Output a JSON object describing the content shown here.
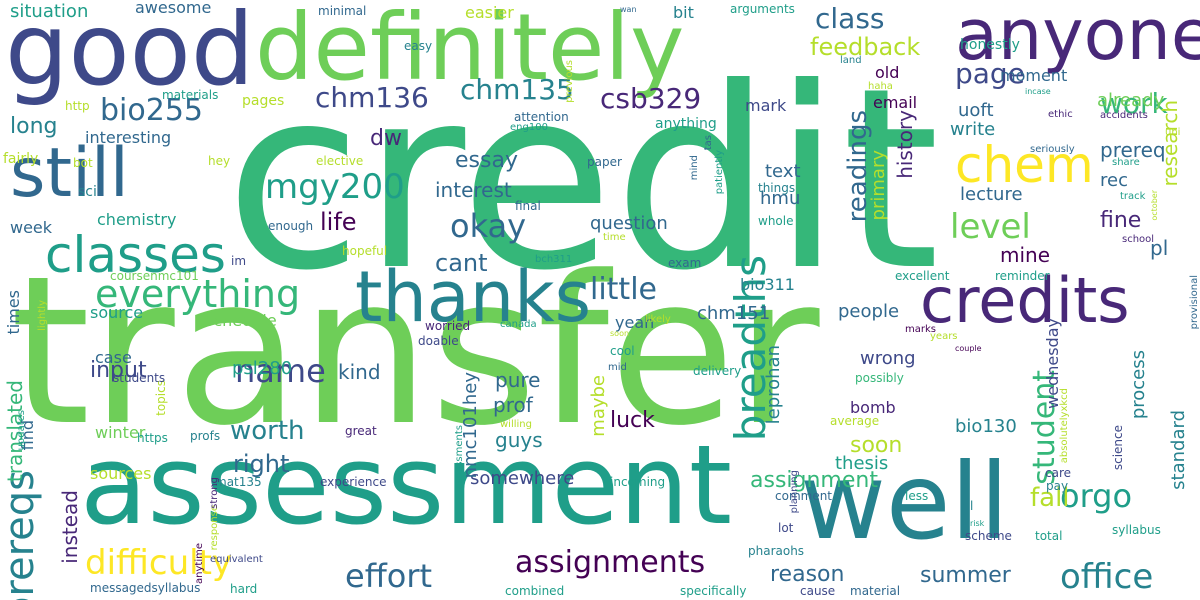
{
  "palette": [
    "#440154",
    "#482878",
    "#3e4989",
    "#31688e",
    "#26828e",
    "#1f9e89",
    "#35b779",
    "#6ece58",
    "#b5de2b",
    "#fde725"
  ],
  "words": [
    {
      "text": "credit",
      "color": "#35b779"
    },
    {
      "text": "transfer",
      "color": "#6ece58"
    },
    {
      "text": "assessment",
      "color": "#1f9e89"
    },
    {
      "text": "definitely",
      "color": "#6ece58"
    },
    {
      "text": "good",
      "color": "#3e4989"
    },
    {
      "text": "well",
      "color": "#26828e"
    },
    {
      "text": "anyone",
      "color": "#482878"
    },
    {
      "text": "thanks",
      "color": "#26828e"
    },
    {
      "text": "credits",
      "color": "#482878"
    },
    {
      "text": "still",
      "color": "#31688e"
    },
    {
      "text": "classes",
      "color": "#1f9e89"
    },
    {
      "text": "everything",
      "color": "#35b779"
    },
    {
      "text": "chem",
      "color": "#fde725"
    },
    {
      "text": "breadths",
      "color": "#1f9e89"
    },
    {
      "text": "mgy200",
      "color": "#1f9e89"
    },
    {
      "text": "office",
      "color": "#26828e"
    },
    {
      "text": "prereqs",
      "color": "#26828e"
    },
    {
      "text": "difficulty",
      "color": "#fde725"
    },
    {
      "text": "effort",
      "color": "#31688e"
    },
    {
      "text": "assignments",
      "color": "#440154"
    },
    {
      "text": "bio255",
      "color": "#31688e"
    },
    {
      "text": "chm136",
      "color": "#3e4989"
    },
    {
      "text": "chm135",
      "color": "#26828e"
    },
    {
      "text": "csb329",
      "color": "#482878"
    },
    {
      "text": "class",
      "color": "#31688e"
    },
    {
      "text": "page",
      "color": "#3e4989"
    },
    {
      "text": "work",
      "color": "#35b779"
    },
    {
      "text": "level",
      "color": "#6ece58"
    },
    {
      "text": "okay",
      "color": "#31688e"
    },
    {
      "text": "little",
      "color": "#31688e"
    },
    {
      "text": "orgo",
      "color": "#1f9e89"
    },
    {
      "text": "name",
      "color": "#3e4989"
    },
    {
      "text": "student",
      "color": "#35b779"
    },
    {
      "text": "feedback",
      "color": "#b5de2b"
    },
    {
      "text": "fall",
      "color": "#b5de2b"
    },
    {
      "text": "summer",
      "color": "#31688e"
    },
    {
      "text": "reason",
      "color": "#31688e"
    },
    {
      "text": "worth",
      "color": "#26828e"
    },
    {
      "text": "right",
      "color": "#31688e"
    },
    {
      "text": "readings",
      "color": "#31688e"
    },
    {
      "text": "cant",
      "color": "#31688e"
    },
    {
      "text": "assignment",
      "color": "#35b779"
    },
    {
      "text": "life",
      "color": "#440154"
    },
    {
      "text": "essay",
      "color": "#31688e"
    },
    {
      "text": "interest",
      "color": "#31688e"
    },
    {
      "text": "fine",
      "color": "#482878"
    },
    {
      "text": "long",
      "color": "#26828e"
    },
    {
      "text": "dw",
      "color": "#482878"
    },
    {
      "text": "research",
      "color": "#b5de2b"
    },
    {
      "text": "prereq",
      "color": "#31688e"
    },
    {
      "text": "history",
      "color": "#482878"
    },
    {
      "text": "primary",
      "color": "#b5de2b"
    },
    {
      "text": "translated",
      "color": "#35b779"
    },
    {
      "text": "instead",
      "color": "#482878"
    },
    {
      "text": "input",
      "color": "#3e4989"
    },
    {
      "text": "kind",
      "color": "#31688e"
    },
    {
      "text": "luck",
      "color": "#440154"
    },
    {
      "text": "pure",
      "color": "#31688e"
    },
    {
      "text": "prof",
      "color": "#31688e"
    },
    {
      "text": "maybe",
      "color": "#b5de2b"
    },
    {
      "text": "guys",
      "color": "#26828e"
    },
    {
      "text": "somewhere",
      "color": "#3e4989"
    },
    {
      "text": "nmc101hey",
      "color": "#31688e"
    },
    {
      "text": "question",
      "color": "#31688e"
    },
    {
      "text": "wrong",
      "color": "#3e4989"
    },
    {
      "text": "people",
      "color": "#31688e"
    },
    {
      "text": "soon",
      "color": "#b5de2b"
    },
    {
      "text": "thesis",
      "color": "#1f9e89"
    },
    {
      "text": "bomb",
      "color": "#482878"
    },
    {
      "text": "chm151",
      "color": "#31688e"
    },
    {
      "text": "bio311",
      "color": "#26828e"
    },
    {
      "text": "bio130",
      "color": "#26828e"
    },
    {
      "text": "psl280",
      "color": "#1f9e89"
    },
    {
      "text": "leprohan",
      "color": "#26828e"
    },
    {
      "text": "wednesday",
      "color": "#3e4989"
    },
    {
      "text": "process",
      "color": "#26828e"
    },
    {
      "text": "standard",
      "color": "#26828e"
    },
    {
      "text": "pl",
      "color": "#31688e"
    },
    {
      "text": "hmu",
      "color": "#31688e"
    },
    {
      "text": "text",
      "color": "#31688e"
    },
    {
      "text": "lecture",
      "color": "#31688e"
    },
    {
      "text": "rec",
      "color": "#31688e"
    },
    {
      "text": "mine",
      "color": "#440154"
    },
    {
      "text": "uoft",
      "color": "#31688e"
    },
    {
      "text": "write",
      "color": "#26828e"
    },
    {
      "text": "already",
      "color": "#6ece58"
    },
    {
      "text": "moment",
      "color": "#31688e"
    },
    {
      "text": "honestly",
      "color": "#1f9e89"
    },
    {
      "text": "email",
      "color": "#440154"
    },
    {
      "text": "old",
      "color": "#440154"
    },
    {
      "text": "mark",
      "color": "#3e4989"
    },
    {
      "text": "interesting",
      "color": "#31688e"
    },
    {
      "text": "chemistry",
      "color": "#1f9e89"
    },
    {
      "text": "week",
      "color": "#31688e"
    },
    {
      "text": "times",
      "color": "#31688e"
    },
    {
      "text": "source",
      "color": "#1f9e89"
    },
    {
      "text": "schedule",
      "color": "#6ece58"
    },
    {
      "text": "case",
      "color": "#31688e"
    },
    {
      "text": "find",
      "color": "#31688e"
    },
    {
      "text": "winter",
      "color": "#6ece58"
    },
    {
      "text": "sources",
      "color": "#b5de2b"
    },
    {
      "text": "yeah",
      "color": "#31688e"
    },
    {
      "text": "awesome",
      "color": "#31688e"
    },
    {
      "text": "situation",
      "color": "#1f9e89"
    },
    {
      "text": "easier",
      "color": "#b5de2b"
    },
    {
      "text": "bit",
      "color": "#26828e"
    },
    {
      "text": "minimal",
      "color": "#31688e"
    },
    {
      "text": "arguments",
      "color": "#1f9e89"
    },
    {
      "text": "previous",
      "color": "#b5de2b"
    },
    {
      "text": "wan",
      "color": "#31688e"
    },
    {
      "text": "easy",
      "color": "#26828e"
    },
    {
      "text": "land",
      "color": "#26828e"
    },
    {
      "text": "haha",
      "color": "#b5de2b"
    },
    {
      "text": "incase",
      "color": "#1f9e89"
    },
    {
      "text": "ethic",
      "color": "#482878"
    },
    {
      "text": "accidents",
      "color": "#482878"
    },
    {
      "text": "uni",
      "color": "#b5de2b"
    },
    {
      "text": "seriously",
      "color": "#31688e"
    },
    {
      "text": "share",
      "color": "#1f9e89"
    },
    {
      "text": "track",
      "color": "#1f9e89"
    },
    {
      "text": "october",
      "color": "#b5de2b"
    },
    {
      "text": "school",
      "color": "#482878"
    },
    {
      "text": "provisional",
      "color": "#31688e"
    },
    {
      "text": "couple",
      "color": "#440154"
    },
    {
      "text": "science",
      "color": "#3e4989"
    },
    {
      "text": "care",
      "color": "#3e4989"
    },
    {
      "text": "pay",
      "color": "#26828e"
    },
    {
      "text": "syllabus",
      "color": "#1f9e89"
    },
    {
      "text": "l",
      "color": "#26828e"
    },
    {
      "text": "risk",
      "color": "#1f9e89"
    },
    {
      "text": "total",
      "color": "#1f9e89"
    },
    {
      "text": "scheme",
      "color": "#3e4989"
    },
    {
      "text": "less",
      "color": "#1f9e89"
    },
    {
      "text": "absolutelyxkcd",
      "color": "#b5de2b"
    },
    {
      "text": "marks",
      "color": "#440154"
    },
    {
      "text": "years",
      "color": "#b5de2b"
    },
    {
      "text": "possibly",
      "color": "#35b779"
    },
    {
      "text": "average",
      "color": "#b5de2b"
    },
    {
      "text": "excellent",
      "color": "#1f9e89"
    },
    {
      "text": "reminder",
      "color": "#1f9e89"
    },
    {
      "text": "comment",
      "color": "#31688e"
    },
    {
      "text": "lot",
      "color": "#3e4989"
    },
    {
      "text": "pharaohs",
      "color": "#26828e"
    },
    {
      "text": "material",
      "color": "#31688e"
    },
    {
      "text": "cause",
      "color": "#3e4989"
    },
    {
      "text": "specifically",
      "color": "#1f9e89"
    },
    {
      "text": "combined",
      "color": "#1f9e89"
    },
    {
      "text": "hard",
      "color": "#1f9e89"
    },
    {
      "text": "messagedsyllabus",
      "color": "#31688e"
    },
    {
      "text": "equivalent",
      "color": "#3e4989"
    },
    {
      "text": "anytime",
      "color": "#440154"
    },
    {
      "text": "response",
      "color": "#b5de2b"
    },
    {
      "text": "mat135",
      "color": "#26828e"
    },
    {
      "text": "experience",
      "color": "#3e4989"
    },
    {
      "text": "incoming",
      "color": "#1f9e89"
    },
    {
      "text": "planning",
      "color": "#3e4989"
    },
    {
      "text": "delivery",
      "color": "#1f9e89"
    },
    {
      "text": "mid",
      "color": "#31688e"
    },
    {
      "text": "cool",
      "color": "#1f9e89"
    },
    {
      "text": "soon",
      "color": "#b5de2b"
    },
    {
      "text": "likely",
      "color": "#b5de2b"
    },
    {
      "text": "canada",
      "color": "#1f9e89"
    },
    {
      "text": "doable",
      "color": "#3e4989"
    },
    {
      "text": "worried",
      "color": "#482878"
    },
    {
      "text": "exam",
      "color": "#31688e"
    },
    {
      "text": "bch311",
      "color": "#1f9e89"
    },
    {
      "text": "willing",
      "color": "#b5de2b"
    },
    {
      "text": "assessments",
      "color": "#1f9e89"
    },
    {
      "text": "great",
      "color": "#482878"
    },
    {
      "text": "profs",
      "color": "#26828e"
    },
    {
      "text": "https",
      "color": "#1f9e89"
    },
    {
      "text": "topics",
      "color": "#b5de2b"
    },
    {
      "text": "students",
      "color": "#3e4989"
    },
    {
      "text": "updates",
      "color": "#1f9e89"
    },
    {
      "text": "lightly",
      "color": "#b5de2b"
    },
    {
      "text": "strong",
      "color": "#482878"
    },
    {
      "text": "coursenmc101",
      "color": "#6ece58"
    },
    {
      "text": "im",
      "color": "#3e4989"
    },
    {
      "text": "hopeful",
      "color": "#b5de2b"
    },
    {
      "text": "enough",
      "color": "#31688e"
    },
    {
      "text": "sci",
      "color": "#26828e"
    },
    {
      "text": "bot",
      "color": "#b5de2b"
    },
    {
      "text": "fairly",
      "color": "#b5de2b"
    },
    {
      "text": "elective",
      "color": "#b5de2b"
    },
    {
      "text": "hey",
      "color": "#b5de2b"
    },
    {
      "text": "http",
      "color": "#b5de2b"
    },
    {
      "text": "materials",
      "color": "#1f9e89"
    },
    {
      "text": "pages",
      "color": "#b5de2b"
    },
    {
      "text": "attention",
      "color": "#31688e"
    },
    {
      "text": "eng100",
      "color": "#1f9e89"
    },
    {
      "text": "anything",
      "color": "#1f9e89"
    },
    {
      "text": "tas",
      "color": "#31688e"
    },
    {
      "text": "mind",
      "color": "#31688e"
    },
    {
      "text": "patiently",
      "color": "#1f9e89"
    },
    {
      "text": "things",
      "color": "#26828e"
    },
    {
      "text": "whole",
      "color": "#1f9e89"
    },
    {
      "text": "time",
      "color": "#b5de2b"
    },
    {
      "text": "final",
      "color": "#31688e"
    },
    {
      "text": "paper",
      "color": "#31688e"
    }
  ]
}
